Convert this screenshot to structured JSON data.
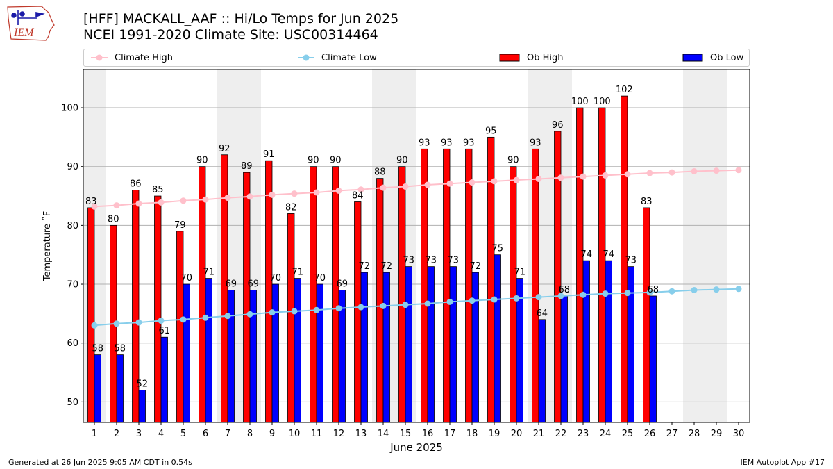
{
  "header": {
    "title_line1": "[HFF] MACKALL_AAF :: Hi/Lo Temps for Jun 2025",
    "title_line2": "NCEI 1991-2020 Climate Site: USC00314464",
    "logo_text": "IEM"
  },
  "footer": {
    "generated": "Generated at 26 Jun 2025 9:05 AM CDT in 0.54s",
    "app": "IEM Autoplot App #17"
  },
  "legend": {
    "climate_high": "Climate High",
    "climate_low": "Climate Low",
    "ob_high": "Ob High",
    "ob_low": "Ob Low"
  },
  "colors": {
    "ob_high": "#ff0000",
    "ob_low": "#0000ff",
    "climate_high": "#ffc0cb",
    "climate_low": "#87ceeb",
    "weekend_band": "#eeeeee",
    "grid": "#b0b0b0"
  },
  "chart_data": {
    "type": "bar",
    "title": "[HFF] MACKALL_AAF :: Hi/Lo Temps for Jun 2025",
    "xlabel": "June 2025",
    "ylabel": "Temperature ˚F",
    "ylim": [
      46.5,
      106.5
    ],
    "yticks": [
      50,
      60,
      70,
      80,
      90,
      100
    ],
    "grid": "horizontal",
    "legend_position": "top",
    "categories": [
      1,
      2,
      3,
      4,
      5,
      6,
      7,
      8,
      9,
      10,
      11,
      12,
      13,
      14,
      15,
      16,
      17,
      18,
      19,
      20,
      21,
      22,
      23,
      24,
      25,
      26,
      27,
      28,
      29,
      30
    ],
    "weekend_days": [
      1,
      7,
      8,
      14,
      15,
      21,
      22,
      28,
      29
    ],
    "series": [
      {
        "name": "Ob High",
        "kind": "bar",
        "values": [
          83,
          80,
          86,
          85,
          79,
          90,
          92,
          89,
          91,
          82,
          90,
          90,
          84,
          88,
          90,
          93,
          93,
          93,
          95,
          90,
          93,
          96,
          100,
          100,
          102,
          83,
          null,
          null,
          null,
          null
        ]
      },
      {
        "name": "Ob Low",
        "kind": "bar",
        "values": [
          58,
          58,
          52,
          61,
          70,
          71,
          69,
          69,
          70,
          71,
          70,
          69,
          72,
          72,
          73,
          73,
          73,
          72,
          75,
          71,
          64,
          68,
          74,
          74,
          73,
          68,
          null,
          null,
          null,
          null
        ]
      },
      {
        "name": "Climate High",
        "kind": "line",
        "values": [
          83.2,
          83.4,
          83.7,
          83.9,
          84.2,
          84.4,
          84.7,
          84.9,
          85.2,
          85.4,
          85.6,
          85.9,
          86.1,
          86.4,
          86.6,
          86.9,
          87.1,
          87.3,
          87.5,
          87.7,
          87.9,
          88.1,
          88.3,
          88.5,
          88.7,
          88.9,
          89.0,
          89.2,
          89.3,
          89.4
        ]
      },
      {
        "name": "Climate Low",
        "kind": "line",
        "values": [
          63.0,
          63.3,
          63.5,
          63.8,
          64.0,
          64.3,
          64.6,
          64.9,
          65.2,
          65.4,
          65.6,
          65.9,
          66.1,
          66.3,
          66.5,
          66.7,
          67.0,
          67.2,
          67.4,
          67.6,
          67.8,
          68.0,
          68.2,
          68.4,
          68.5,
          68.6,
          68.8,
          69.0,
          69.1,
          69.2
        ]
      }
    ]
  }
}
